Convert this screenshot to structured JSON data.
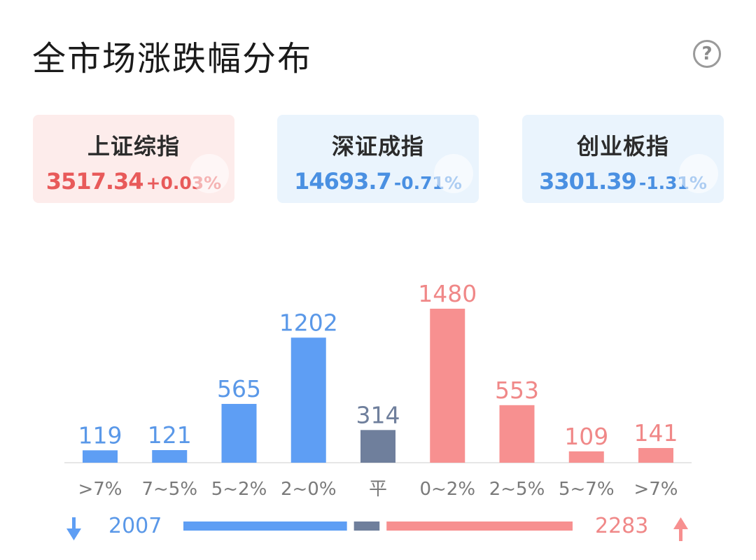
{
  "header": {
    "title": "全市场涨跌幅分布",
    "help_glyph": "?"
  },
  "indices": [
    {
      "name": "上证综指",
      "value": "3517.34",
      "change": "+0.03%",
      "trend": "up"
    },
    {
      "name": "深证成指",
      "value": "14693.7",
      "change": "-0.71%",
      "trend": "down"
    },
    {
      "name": "创业板指",
      "value": "3301.39",
      "change": "-1.31%",
      "trend": "down"
    }
  ],
  "colors": {
    "down": "#5e9ef4",
    "flat": "#6f7f9c",
    "up": "#f79090",
    "down_text": "#5a98e8",
    "up_text": "#f08888",
    "flat_text": "#6f7f9c"
  },
  "chart_data": {
    "type": "bar",
    "categories": [
      ">7%",
      "7~5%",
      "5~2%",
      "2~0%",
      "平",
      "0~2%",
      "2~5%",
      "5~7%",
      ">7%"
    ],
    "values": [
      119,
      121,
      565,
      1202,
      314,
      1480,
      553,
      109,
      141
    ],
    "groups": [
      "down",
      "down",
      "down",
      "down",
      "flat",
      "up",
      "up",
      "up",
      "up"
    ],
    "title": "",
    "xlabel": "",
    "ylabel": ""
  },
  "summary": {
    "down_count": "2007",
    "up_count": "2283",
    "down_icon": "arrow-down-icon",
    "up_icon": "arrow-up-icon"
  }
}
